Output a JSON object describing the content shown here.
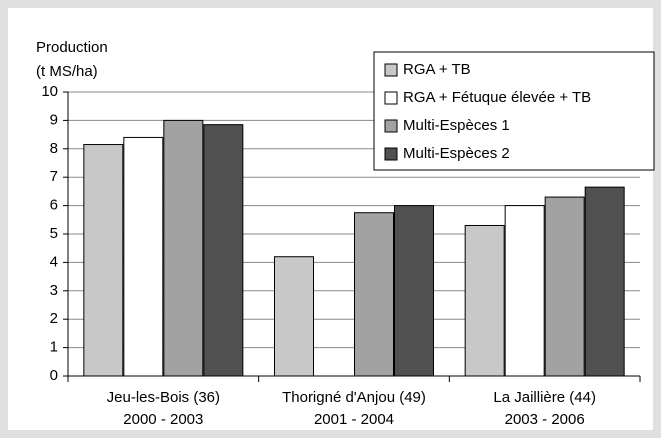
{
  "chart_data": {
    "type": "bar",
    "ylabel": [
      "Production",
      "(t MS/ha)"
    ],
    "categories": [
      [
        "Jeu-les-Bois (36)",
        "2000 - 2003"
      ],
      [
        "Thorigné d'Anjou (49)",
        "2001 - 2004"
      ],
      [
        "La Jaillière (44)",
        "2003 - 2006"
      ]
    ],
    "series": [
      {
        "name": "RGA + TB",
        "color": "#c8c8c8",
        "values": [
          8.15,
          4.2,
          5.3
        ]
      },
      {
        "name": "RGA + Fétuque élevée + TB",
        "color": "#ffffff",
        "values": [
          8.4,
          null,
          6.0
        ]
      },
      {
        "name": "Multi-Espèces 1",
        "color": "#a2a2a2",
        "values": [
          9.0,
          5.75,
          6.3
        ]
      },
      {
        "name": "Multi-Espèces 2",
        "color": "#505050",
        "values": [
          8.85,
          6.0,
          6.65
        ]
      }
    ],
    "ylim": [
      0,
      10
    ],
    "yticks": [
      0,
      1,
      2,
      3,
      4,
      5,
      6,
      7,
      8,
      9,
      10
    ],
    "grid": true,
    "legend": "upper right"
  }
}
